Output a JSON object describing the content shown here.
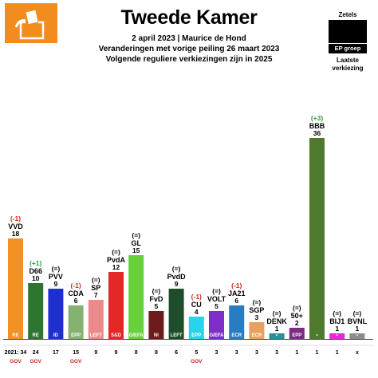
{
  "header": {
    "title": "Tweede Kamer",
    "subtitle_lines": [
      "2 april 2023 | Maurice de Hond",
      "Veranderingen met vorige peiling 26 maart 2023",
      "Volgende reguliere verkiezingen zijn in 2025"
    ]
  },
  "legend": {
    "seats_label": "Zetels",
    "group_label": "EP groep",
    "last_election_label": "Laatste verkiezing"
  },
  "colors": {
    "gov": "#c0281e",
    "gain": "#2a9d3e",
    "loss": "#d9241d",
    "neutral": "#000000",
    "logo": "#f28c1e"
  },
  "chart_data": {
    "type": "bar",
    "ylim": [
      0,
      40
    ],
    "row_label_prefix": "2021:",
    "gov_label": "GOV",
    "parties": [
      {
        "name": "VVD",
        "seats": 18,
        "change": "(-1)",
        "trend": "loss",
        "group": "RE",
        "last": 34,
        "gov": true,
        "color": "#f39223"
      },
      {
        "name": "D66",
        "seats": 10,
        "change": "(+1)",
        "trend": "gain",
        "group": "RE",
        "last": 24,
        "gov": true,
        "color": "#2e7532"
      },
      {
        "name": "PVV",
        "seats": 9,
        "change": "(=)",
        "trend": "neutral",
        "group": "ID",
        "last": 17,
        "gov": false,
        "color": "#1f2ecf"
      },
      {
        "name": "CDA",
        "seats": 6,
        "change": "(-1)",
        "trend": "loss",
        "group": "EPP",
        "last": 15,
        "gov": true,
        "color": "#86b271"
      },
      {
        "name": "SP",
        "seats": 7,
        "change": "(=)",
        "trend": "neutral",
        "group": "LEFT",
        "last": 9,
        "gov": false,
        "color": "#ea8a8a"
      },
      {
        "name": "PvdA",
        "seats": 12,
        "change": "(=)",
        "trend": "neutral",
        "group": "S&D",
        "last": 9,
        "gov": false,
        "color": "#e32626"
      },
      {
        "name": "GL",
        "seats": 15,
        "change": "(=)",
        "trend": "neutral",
        "group": "G/EFA",
        "last": 8,
        "gov": false,
        "color": "#67d03a"
      },
      {
        "name": "FvD",
        "seats": 5,
        "change": "(=)",
        "trend": "neutral",
        "group": "NI",
        "last": 8,
        "gov": false,
        "color": "#6e1b1b"
      },
      {
        "name": "PvdD",
        "seats": 9,
        "change": "(=)",
        "trend": "neutral",
        "group": "LEFT",
        "last": 6,
        "gov": false,
        "color": "#1d4d2a"
      },
      {
        "name": "CU",
        "seats": 4,
        "change": "(-1)",
        "trend": "loss",
        "group": "EPP",
        "last": 5,
        "gov": true,
        "color": "#27d4ea"
      },
      {
        "name": "VOLT",
        "seats": 5,
        "change": "(=)",
        "trend": "neutral",
        "group": "G/EFA",
        "last": 3,
        "gov": false,
        "color": "#7e2fc8"
      },
      {
        "name": "JA21",
        "seats": 6,
        "change": "(-1)",
        "trend": "loss",
        "group": "ECR",
        "last": 3,
        "gov": false,
        "color": "#2a7cc2"
      },
      {
        "name": "SGP",
        "seats": 3,
        "change": "(=)",
        "trend": "neutral",
        "group": "ECR",
        "last": 3,
        "gov": false,
        "color": "#e8a05a"
      },
      {
        "name": "DENK",
        "seats": 1,
        "change": "(=)",
        "trend": "neutral",
        "group": "•",
        "last": 3,
        "gov": false,
        "color": "#2a8f9c"
      },
      {
        "name": "50+",
        "seats": 2,
        "change": "(=)",
        "trend": "neutral",
        "group": "EPP",
        "last": 1,
        "gov": false,
        "color": "#7b2b83"
      },
      {
        "name": "BBB",
        "seats": 36,
        "change": "(+3)",
        "trend": "gain",
        "group": "•",
        "last": 1,
        "gov": false,
        "color": "#4f7a2b"
      },
      {
        "name": "BIJ1",
        "seats": 1,
        "change": "(=)",
        "trend": "neutral",
        "group": "•",
        "last": 1,
        "gov": false,
        "color": "#e62ad1"
      },
      {
        "name": "BVNL",
        "seats": 1,
        "change": "(=)",
        "trend": "neutral",
        "group": "•",
        "last": "x",
        "gov": false,
        "color": "#8c8c8c"
      }
    ]
  }
}
